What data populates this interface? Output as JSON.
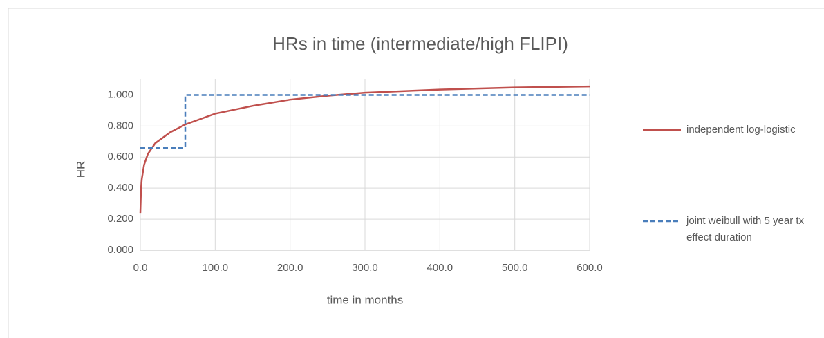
{
  "chart_data": {
    "type": "line",
    "title": "HRs in time (intermediate/high FLIPI)",
    "xlabel": "time in months",
    "ylabel": "HR",
    "xlim": [
      0,
      600
    ],
    "ylim": [
      0,
      1.1
    ],
    "xticks": [
      {
        "value": 0,
        "label": "0.0"
      },
      {
        "value": 100,
        "label": "100.0"
      },
      {
        "value": 200,
        "label": "200.0"
      },
      {
        "value": 300,
        "label": "300.0"
      },
      {
        "value": 400,
        "label": "400.0"
      },
      {
        "value": 500,
        "label": "500.0"
      },
      {
        "value": 600,
        "label": "600.0"
      }
    ],
    "yticks": [
      {
        "value": 0,
        "label": "0.000"
      },
      {
        "value": 0.2,
        "label": "0.200"
      },
      {
        "value": 0.4,
        "label": "0.400"
      },
      {
        "value": 0.6,
        "label": "0.600"
      },
      {
        "value": 0.8,
        "label": "0.800"
      },
      {
        "value": 1,
        "label": "1.000"
      }
    ],
    "grid": true,
    "series": [
      {
        "name": "independent log-logistic",
        "color": "#c0504d",
        "dash": false,
        "x": [
          0,
          1,
          2,
          5,
          10,
          20,
          40,
          60,
          100,
          150,
          200,
          250,
          300,
          400,
          500,
          600
        ],
        "values": [
          0.24,
          0.4,
          0.46,
          0.55,
          0.62,
          0.69,
          0.76,
          0.81,
          0.88,
          0.93,
          0.97,
          0.995,
          1.015,
          1.035,
          1.048,
          1.055
        ]
      },
      {
        "name": "joint weibull with 5 year tx effect duration",
        "color": "#4a7ebb",
        "dash": true,
        "x": [
          0,
          60,
          60,
          600
        ],
        "values": [
          0.66,
          0.66,
          1,
          1
        ]
      }
    ]
  }
}
